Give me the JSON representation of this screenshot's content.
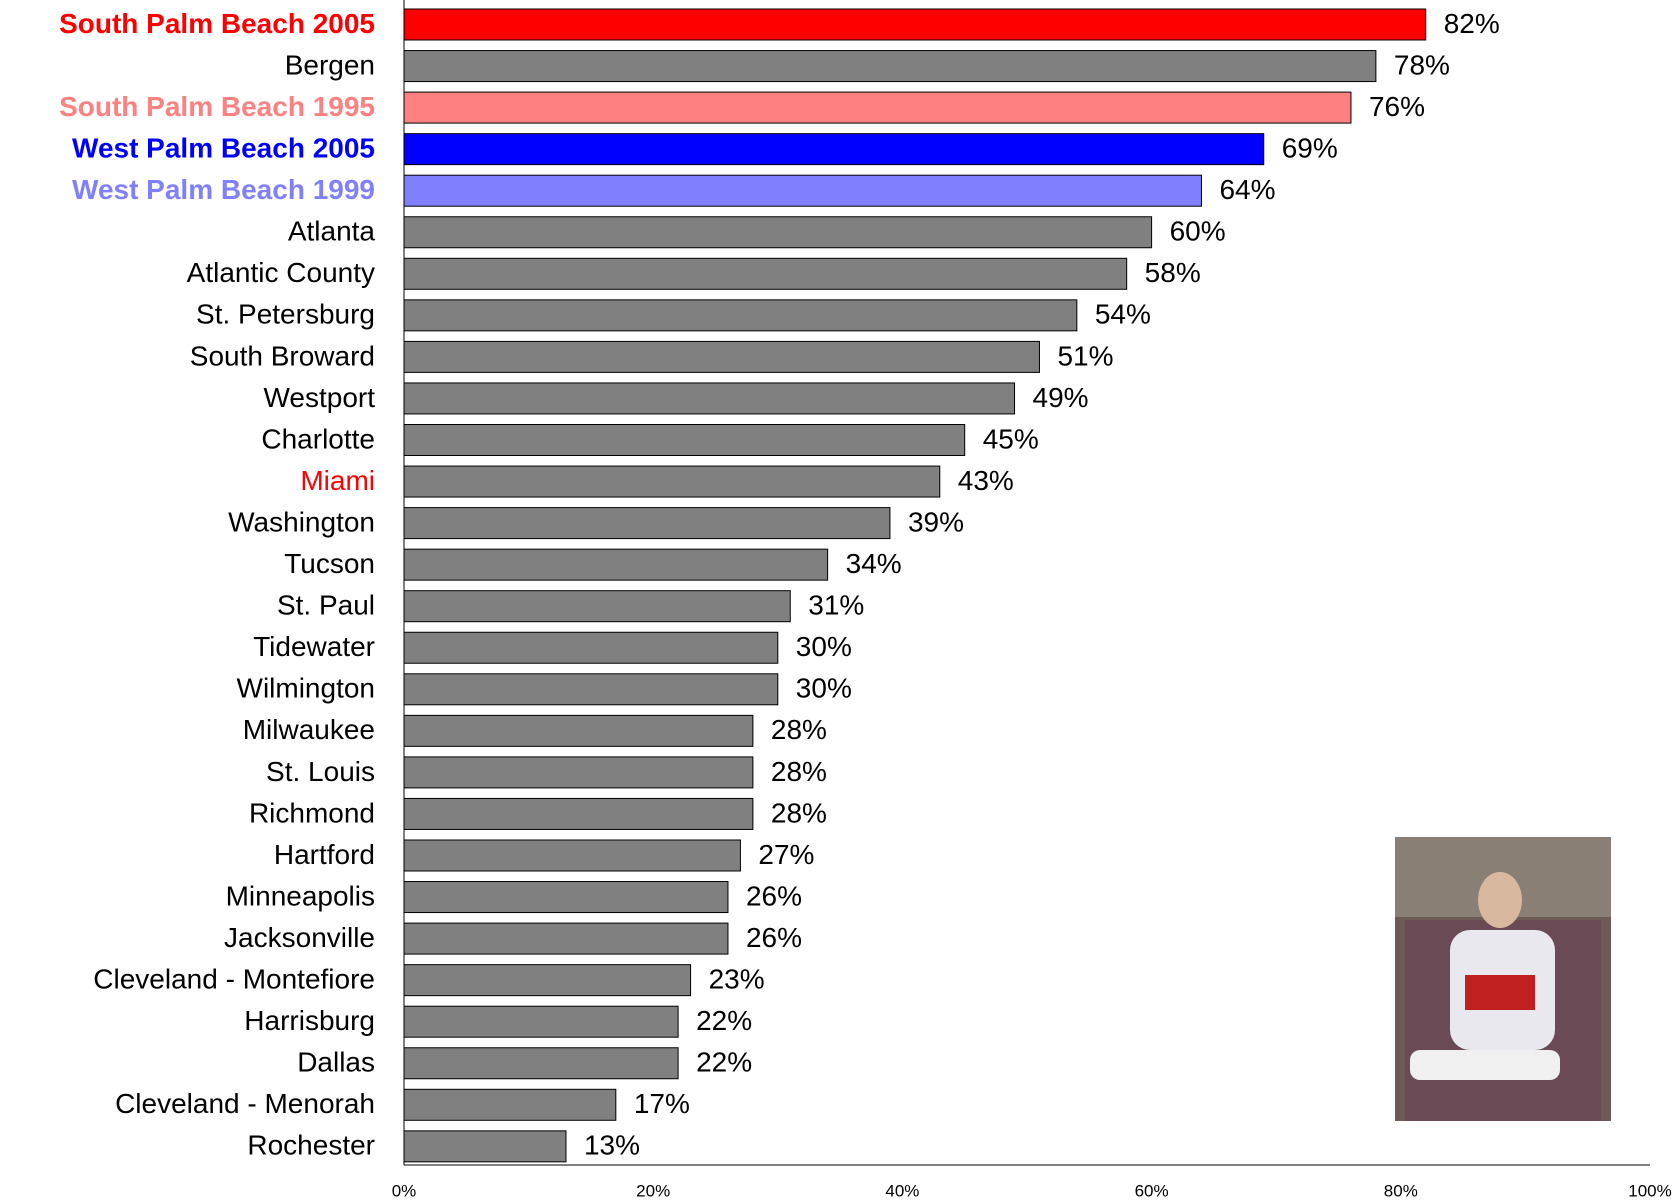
{
  "chart_data": {
    "type": "hbar",
    "categories": [
      "South Palm Beach 2005",
      "Bergen",
      "South Palm Beach 1995",
      "West Palm Beach 2005",
      "West Palm Beach 1999",
      "Atlanta",
      "Atlantic County",
      "St. Petersburg",
      "South Broward",
      "Westport",
      "Charlotte",
      "Miami",
      "Washington",
      "Tucson",
      "St. Paul",
      "Tidewater",
      "Wilmington",
      "Milwaukee",
      "St. Louis",
      "Richmond",
      "Hartford",
      "Minneapolis",
      "Jacksonville",
      "Cleveland - Montefiore",
      "Harrisburg",
      "Dallas",
      "Cleveland - Menorah",
      "Rochester"
    ],
    "values": [
      82,
      78,
      76,
      69,
      64,
      60,
      58,
      54,
      51,
      49,
      45,
      43,
      39,
      34,
      31,
      30,
      30,
      28,
      28,
      28,
      27,
      26,
      26,
      23,
      22,
      22,
      17,
      13
    ],
    "value_labels": [
      "82%",
      "78%",
      "76%",
      "69%",
      "64%",
      "60%",
      "58%",
      "54%",
      "51%",
      "49%",
      "45%",
      "43%",
      "39%",
      "34%",
      "31%",
      "30%",
      "30%",
      "28%",
      "28%",
      "28%",
      "27%",
      "26%",
      "26%",
      "23%",
      "22%",
      "22%",
      "17%",
      "13%"
    ],
    "colors": [
      "#ff0000",
      "#808080",
      "#ff8080",
      "#0000ff",
      "#8080ff",
      "#808080",
      "#808080",
      "#808080",
      "#808080",
      "#808080",
      "#808080",
      "#808080",
      "#808080",
      "#808080",
      "#808080",
      "#808080",
      "#808080",
      "#808080",
      "#808080",
      "#808080",
      "#808080",
      "#808080",
      "#808080",
      "#808080",
      "#808080",
      "#808080",
      "#808080",
      "#808080"
    ],
    "label_colors": [
      "#ff0000",
      "#000000",
      "#ff8080",
      "#0000ff",
      "#8080ff",
      "#000000",
      "#000000",
      "#000000",
      "#000000",
      "#000000",
      "#000000",
      "#ff0000",
      "#000000",
      "#000000",
      "#000000",
      "#000000",
      "#000000",
      "#000000",
      "#000000",
      "#000000",
      "#000000",
      "#000000",
      "#000000",
      "#000000",
      "#000000",
      "#000000",
      "#000000",
      "#000000"
    ],
    "bold_labels": [
      0,
      2,
      3,
      4
    ],
    "xlim": [
      0,
      100
    ],
    "xticks": [
      {
        "value": 0,
        "label": "0%"
      },
      {
        "value": 20,
        "label": "20%"
      },
      {
        "value": 40,
        "label": "40%"
      },
      {
        "value": 60,
        "label": "60%"
      },
      {
        "value": 80,
        "label": "80%"
      },
      {
        "value": 100,
        "label": "100%"
      }
    ]
  }
}
